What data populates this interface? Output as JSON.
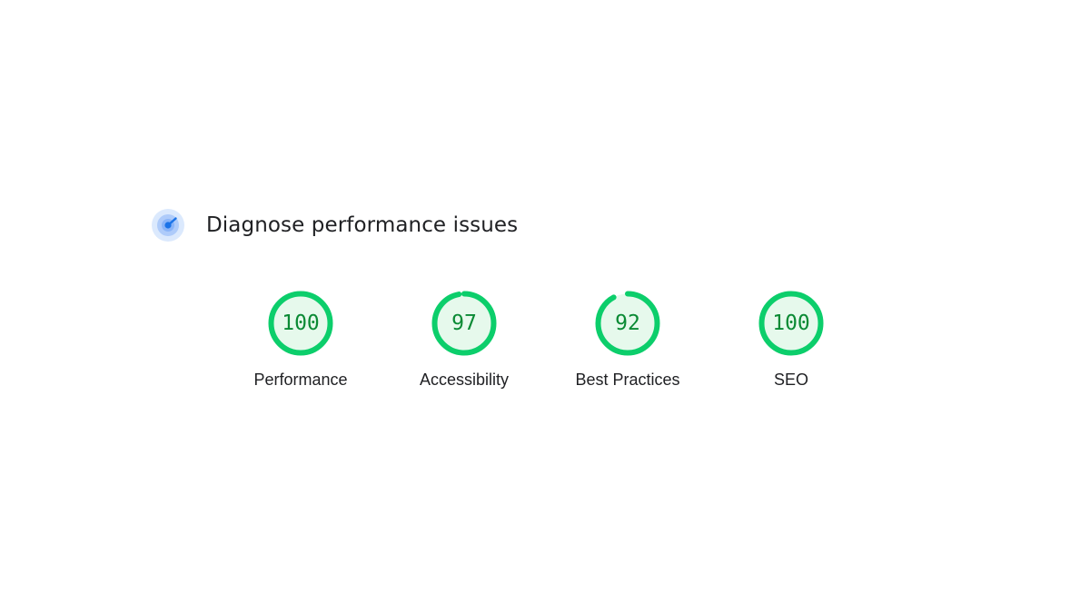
{
  "header": {
    "title": "Diagnose performance issues",
    "icon": "lighthouse-icon"
  },
  "theme": {
    "pass_color": "#0cce6b",
    "pass_fill": "#e6f9ec",
    "pass_text": "#0a8a34",
    "icon_blue": "#1a73e8"
  },
  "categories": [
    {
      "label": "Performance",
      "score": 100,
      "display": "100"
    },
    {
      "label": "Accessibility",
      "score": 97,
      "display": "97"
    },
    {
      "label": "Best Practices",
      "score": 92,
      "display": "92"
    },
    {
      "label": "SEO",
      "score": 100,
      "display": "100"
    }
  ]
}
